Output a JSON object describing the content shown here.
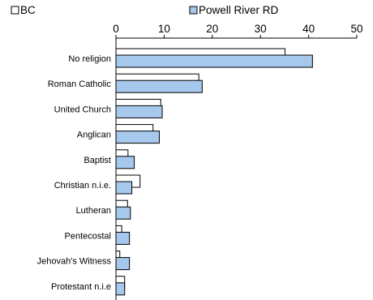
{
  "chart_data": {
    "type": "bar",
    "orientation": "horizontal",
    "categories": [
      "No religion",
      "Roman Catholic",
      "United Church",
      "Anglican",
      "Baptist",
      "Christian n.i.e.",
      "Lutheran",
      "Pentecostal",
      "Jehovah's Witness",
      "Protestant n.i.e"
    ],
    "series": [
      {
        "name": "BC",
        "color": "#ffffff",
        "values": [
          35.1,
          17.2,
          9.3,
          7.7,
          2.5,
          5.0,
          2.4,
          1.2,
          0.8,
          1.8
        ]
      },
      {
        "name": "Powell River RD",
        "color": "#a6c8ec",
        "values": [
          40.8,
          17.9,
          9.6,
          9.0,
          3.8,
          3.3,
          3.0,
          2.8,
          2.8,
          1.8
        ]
      }
    ],
    "xticks": [
      "0",
      "10",
      "20",
      "30",
      "40",
      "50"
    ],
    "xlim": [
      0,
      50
    ],
    "x_axis_position": "top",
    "legend_placement": "top",
    "title": "",
    "xlabel": "",
    "ylabel": "",
    "grid": false
  }
}
